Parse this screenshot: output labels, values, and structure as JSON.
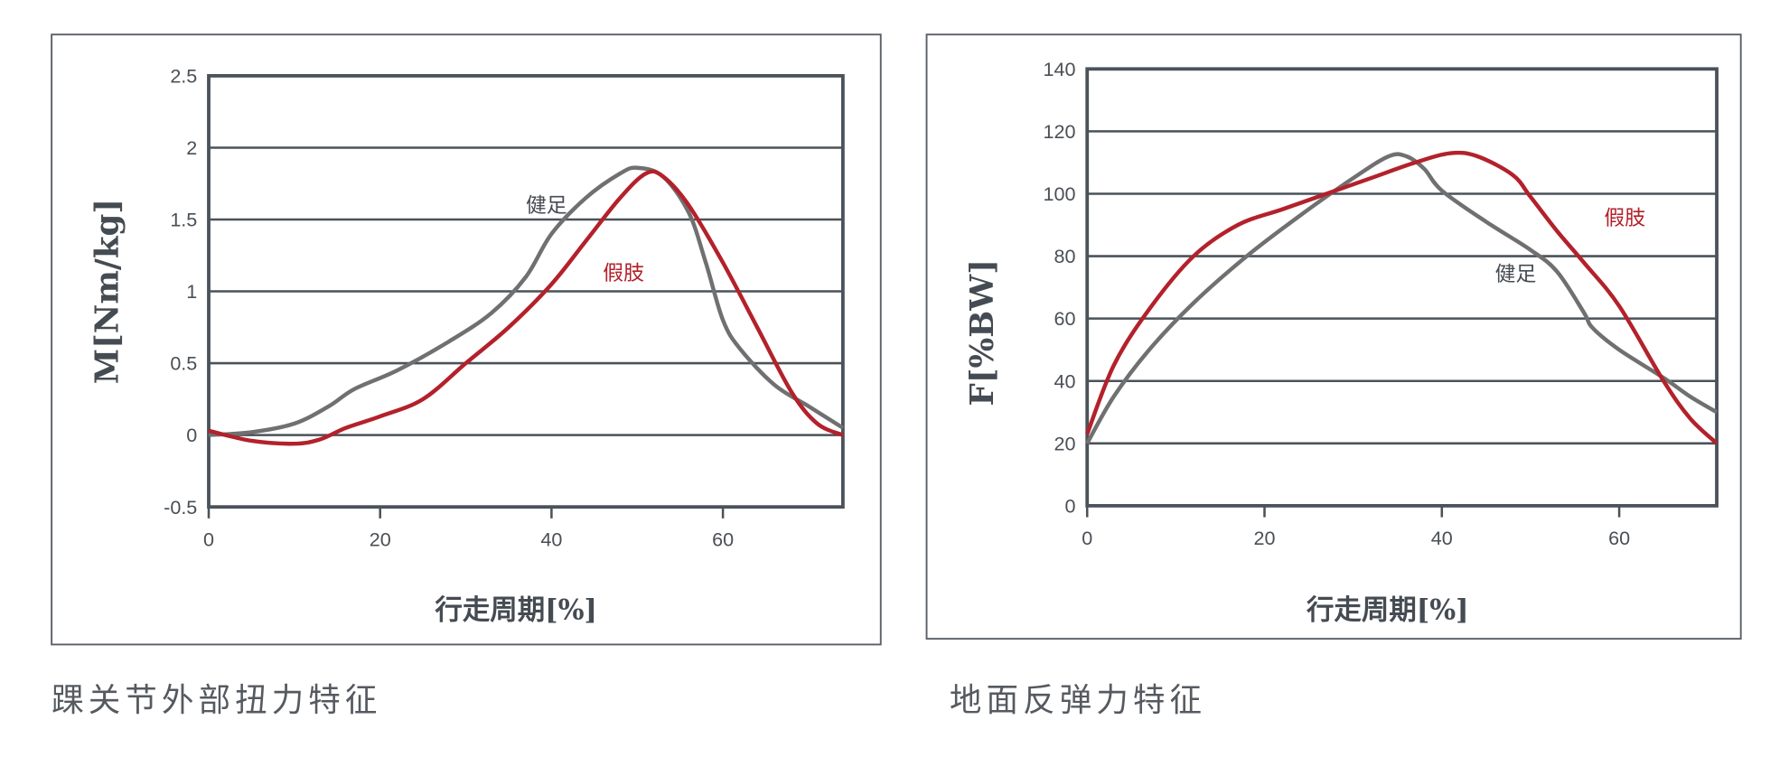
{
  "colors": {
    "healthy": "#707070",
    "prosthesis": "#b3212b",
    "axis": "#4a525a",
    "text": "#4a4f55"
  },
  "chart_data": [
    {
      "type": "line",
      "caption": "踝关节外部扭力特征",
      "xlabel": "行走周期[%]",
      "ylabel": "M[Nm/kg]",
      "xlim": [
        0,
        74
      ],
      "ylim": [
        -0.5,
        2.5
      ],
      "xticks": [
        0,
        20,
        40,
        60
      ],
      "xtick_labels": [
        "0",
        "20",
        "40",
        "60"
      ],
      "yticks": [
        -0.5,
        0,
        0.5,
        1,
        1.5,
        2,
        2.5
      ],
      "ytick_labels": [
        "-0.5",
        "0",
        "0.5",
        "1",
        "1.5",
        "2",
        "2.5"
      ],
      "grid": true,
      "series": [
        {
          "name": "健足",
          "color": "#707070",
          "label_at": [
            37,
            1.55
          ],
          "x": [
            0,
            5,
            10,
            14,
            17,
            22,
            28,
            33,
            37,
            40,
            44,
            48,
            50,
            53,
            56,
            58,
            60,
            62,
            66,
            70,
            74
          ],
          "y": [
            0,
            0.02,
            0.08,
            0.2,
            0.32,
            0.45,
            0.65,
            0.85,
            1.1,
            1.4,
            1.65,
            1.82,
            1.86,
            1.8,
            1.55,
            1.2,
            0.8,
            0.6,
            0.35,
            0.2,
            0.05
          ]
        },
        {
          "name": "假肢",
          "color": "#b3212b",
          "label_at": [
            46,
            1.08
          ],
          "x": [
            0,
            5,
            10,
            13,
            16,
            20,
            25,
            30,
            35,
            40,
            44,
            48,
            51,
            53,
            56,
            60,
            64,
            68,
            71,
            74
          ],
          "y": [
            0.03,
            -0.04,
            -0.06,
            -0.03,
            0.05,
            0.13,
            0.25,
            0.5,
            0.75,
            1.05,
            1.35,
            1.65,
            1.82,
            1.8,
            1.6,
            1.2,
            0.75,
            0.3,
            0.08,
            0
          ]
        }
      ]
    },
    {
      "type": "line",
      "caption": "地面反弹力特征",
      "xlabel": "行走周期[%]",
      "ylabel": "F[%BW]",
      "xlim": [
        0,
        71
      ],
      "ylim": [
        0,
        140
      ],
      "xticks": [
        0,
        20,
        40,
        60
      ],
      "xtick_labels": [
        "0",
        "20",
        "40",
        "60"
      ],
      "yticks": [
        0,
        20,
        40,
        60,
        80,
        100,
        120,
        140
      ],
      "ytick_labels": [
        "0",
        "20",
        "40",
        "60",
        "80",
        "100",
        "120",
        "140"
      ],
      "grid": true,
      "series": [
        {
          "name": "健足",
          "color": "#707070",
          "label_at": [
            46,
            72
          ],
          "x": [
            0,
            3,
            7,
            12,
            18,
            24,
            30,
            34,
            36,
            38,
            40,
            45,
            50,
            53,
            56,
            57,
            60,
            65,
            68,
            71
          ],
          "y": [
            20,
            35,
            50,
            65,
            80,
            93,
            105,
            112,
            112,
            108,
            101,
            91,
            82,
            75,
            62,
            57,
            50,
            41,
            35,
            30
          ]
        },
        {
          "name": "假肢",
          "color": "#b3212b",
          "label_at": [
            58.3,
            90
          ],
          "x": [
            0,
            3,
            7,
            12,
            17,
            22,
            27,
            32,
            37,
            41,
            44,
            48,
            50,
            53,
            56,
            60,
            65,
            68,
            71
          ],
          "y": [
            23,
            45,
            63,
            80,
            90,
            95,
            100,
            105,
            110,
            113,
            112,
            106,
            99,
            88,
            78,
            64,
            40,
            28,
            20
          ]
        }
      ]
    }
  ]
}
